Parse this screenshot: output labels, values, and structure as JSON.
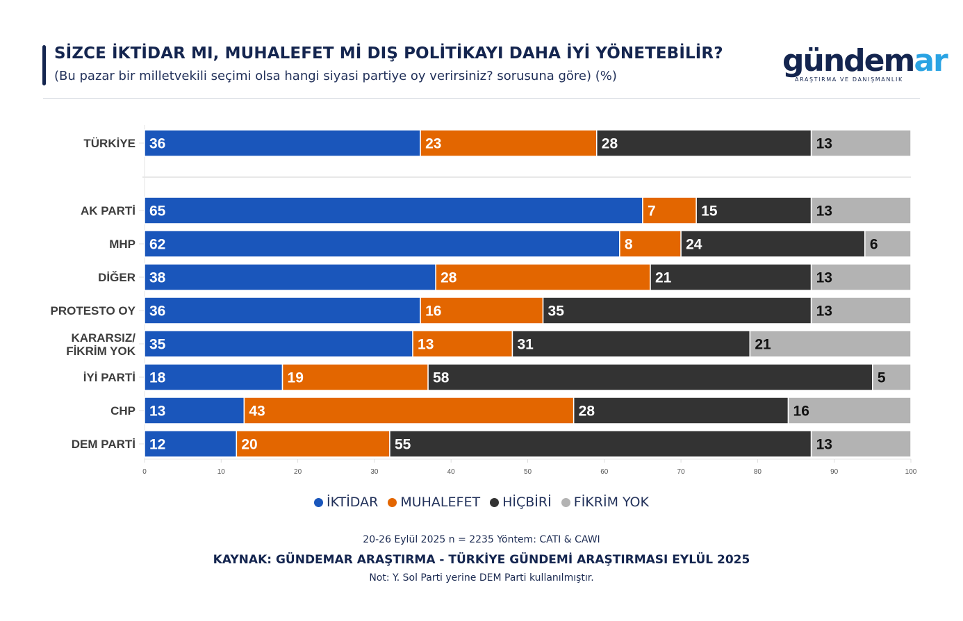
{
  "header": {
    "title": "SİZCE İKTİDAR MI, MUHALEFET Mİ DIŞ POLİTİKAYI DAHA İYİ YÖNETEBİLİR?",
    "subtitle": "(Bu pazar bir milletvekili seçimi olsa hangi siyasi partiye oy verirsiniz? sorusuna göre) (%)"
  },
  "logo": {
    "word_main": "gündem",
    "word_accent": "ar",
    "tagline": "ARAŞTIRMA VE DANIŞMANLIK"
  },
  "colors": {
    "iktidar": "#1a56bb",
    "muhalefet": "#e36600",
    "hicbiri": "#333333",
    "fikrim_yok": "#b3b3b3",
    "navy": "#14254f"
  },
  "chart_data": {
    "type": "bar",
    "orientation": "horizontal",
    "stacked": true,
    "title": "SİZCE İKTİDAR MI, MUHALEFET Mİ DIŞ POLİTİKAYI DAHA İYİ YÖNETEBİLİR?",
    "subtitle": "(Bu pazar bir milletvekili seçimi olsa hangi siyasi partiye oy verirsiniz? sorusuna göre) (%)",
    "xlabel": "",
    "ylabel": "",
    "xlim": [
      0,
      100
    ],
    "xticks": [
      0,
      10,
      20,
      30,
      40,
      50,
      60,
      70,
      80,
      90,
      100
    ],
    "grid": false,
    "legend_position": "bottom-center",
    "categories": [
      "TÜRKİYE",
      "AK PARTİ",
      "MHP",
      "DİĞER",
      "PROTESTO OY",
      "KARARSIZ/\nFİKRİM YOK",
      "İYİ PARTİ",
      "CHP",
      "DEM PARTİ"
    ],
    "group_break_after": 0,
    "series": [
      {
        "name": "İKTİDAR",
        "color": "#1a56bb",
        "label_color": "#ffffff",
        "values": [
          36,
          65,
          62,
          38,
          36,
          35,
          18,
          13,
          12
        ]
      },
      {
        "name": "MUHALEFET",
        "color": "#e36600",
        "label_color": "#ffffff",
        "values": [
          23,
          7,
          8,
          28,
          16,
          13,
          19,
          43,
          20
        ]
      },
      {
        "name": "HİÇBİRİ",
        "color": "#333333",
        "label_color": "#ffffff",
        "values": [
          28,
          15,
          24,
          21,
          35,
          31,
          58,
          28,
          55
        ]
      },
      {
        "name": "FİKRİM YOK",
        "color": "#b3b3b3",
        "label_color": "#111111",
        "values": [
          13,
          13,
          6,
          13,
          13,
          21,
          5,
          16,
          13
        ]
      }
    ]
  },
  "legend": [
    {
      "label": "İKTİDAR",
      "color": "#1a56bb"
    },
    {
      "label": "MUHALEFET",
      "color": "#e36600"
    },
    {
      "label": "HİÇBİRİ",
      "color": "#333333"
    },
    {
      "label": "FİKRİM YOK",
      "color": "#b3b3b3"
    }
  ],
  "footer": {
    "method": "20-26 Eylül 2025 n = 2235 Yöntem: CATI & CAWI",
    "source": "KAYNAK: GÜNDEMAR ARAŞTIRMA - TÜRKİYE GÜNDEMİ ARAŞTIRMASI EYLÜL 2025",
    "note": "Not: Y. Sol Parti yerine DEM Parti kullanılmıştır."
  }
}
